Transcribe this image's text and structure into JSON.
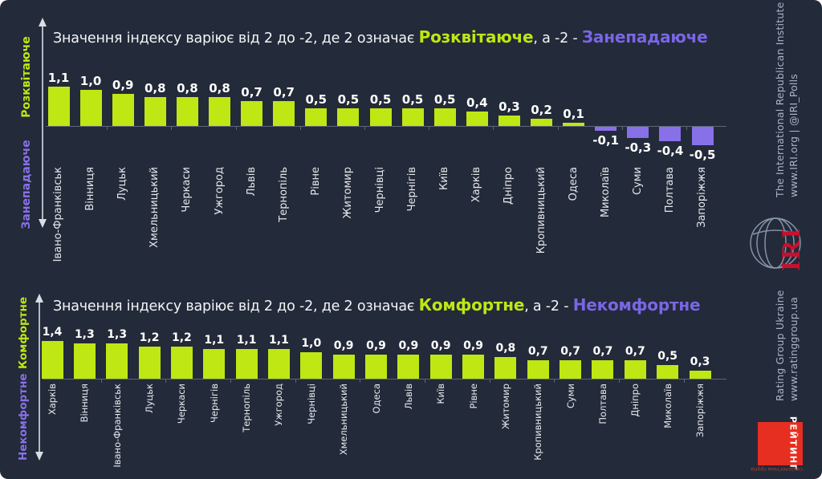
{
  "colors": {
    "background": "#232A39",
    "bar_positive": "#BEE714",
    "bar_negative": "#8870E8",
    "title_positive_word": "#BEE714",
    "title_negative_word": "#7A66E6",
    "iri_red": "#C8102E",
    "rating_red": "#E62E21"
  },
  "chart_data": [
    {
      "type": "bar",
      "title": {
        "prefix": "Значення індексу варіює від 2 до -2, де 2 означає ",
        "positive_word": "Розквітаюче",
        "middle": ", а -2 - ",
        "negative_word": "Занепадаюче"
      },
      "axis": {
        "positive_label": "Розквітаюче",
        "negative_label": "Занепадаюче"
      },
      "ylim": [
        -2,
        2
      ],
      "categories": [
        "Івано-Франківськ",
        "Вінниця",
        "Луцьк",
        "Хмельницький",
        "Черкаси",
        "Ужгород",
        "Львів",
        "Тернопіль",
        "Рівне",
        "Житомир",
        "Чернівці",
        "Чернігів",
        "Київ",
        "Харків",
        "Дніпро",
        "Кропивницький",
        "Одеса",
        "Миколаїв",
        "Суми",
        "Полтава",
        "Запоріжжя"
      ],
      "values": [
        1.1,
        1.0,
        0.9,
        0.8,
        0.8,
        0.8,
        0.7,
        0.7,
        0.5,
        0.5,
        0.5,
        0.5,
        0.5,
        0.4,
        0.3,
        0.2,
        0.1,
        -0.1,
        -0.3,
        -0.4,
        -0.5
      ]
    },
    {
      "type": "bar",
      "title": {
        "prefix": "Значення індексу варіює від 2 до -2, де 2 означає ",
        "positive_word": "Комфортне",
        "middle": ", а -2 - ",
        "negative_word": "Некомфортне"
      },
      "axis": {
        "positive_label": "Комфортне",
        "negative_label": "Некомфортне"
      },
      "ylim": [
        -2,
        2
      ],
      "categories": [
        "Харків",
        "Вінниця",
        "Івано-Франківськ",
        "Луцьк",
        "Черкаси",
        "Чернігів",
        "Тернопіль",
        "Ужгород",
        "Чернівці",
        "Хмельницький",
        "Одеса",
        "Львів",
        "Київ",
        "Рівне",
        "Житомир",
        "Кропивницький",
        "Суми",
        "Полтава",
        "Дніпро",
        "Миколаїв",
        "Запоріжжя"
      ],
      "values": [
        1.4,
        1.3,
        1.3,
        1.2,
        1.2,
        1.1,
        1.1,
        1.1,
        1.0,
        0.9,
        0.9,
        0.9,
        0.9,
        0.9,
        0.8,
        0.7,
        0.7,
        0.7,
        0.7,
        0.5,
        0.3
      ]
    }
  ],
  "branding": {
    "iri_line1": "The International Republican Institute",
    "iri_line2": "www.IRI.org | @IRI_Polls",
    "iri_logo_text": "IRI",
    "rating_line1": "Rating Group Ukraine",
    "rating_line2": "www.ratinggroup.ua",
    "rating_logo_text": "РЕЙТИНГ",
    "rating_logo_sub": "соціологічна група"
  }
}
